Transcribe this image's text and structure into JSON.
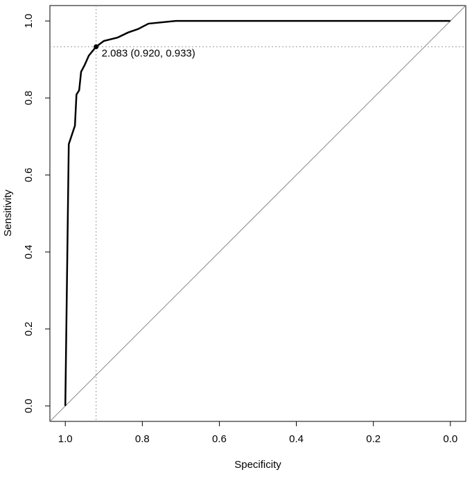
{
  "chart_data": {
    "type": "line",
    "xlabel": "Specificity",
    "ylabel": "Sensitivity",
    "xlim": [
      1.04,
      -0.04
    ],
    "ylim": [
      -0.04,
      1.04
    ],
    "xticks": [
      {
        "value": 1,
        "label": "1.0"
      },
      0.8,
      0.6,
      0.4,
      0.2,
      {
        "value": 0,
        "label": "0.0"
      }
    ],
    "yticks": [
      {
        "value": 0,
        "label": "0.0"
      },
      0.2,
      0.4,
      0.6,
      0.8,
      {
        "value": 1,
        "label": "1.0"
      }
    ],
    "series": [
      {
        "color": "#000000",
        "x": [
          1.0,
          0.996,
          0.991,
          0.975,
          0.971,
          0.964,
          0.959,
          0.95,
          0.939,
          0.92,
          0.9,
          0.864,
          0.837,
          0.811,
          0.784,
          0.713,
          0.0
        ],
        "y": [
          0.0,
          0.3,
          0.68,
          0.728,
          0.809,
          0.82,
          0.868,
          0.885,
          0.91,
          0.933,
          0.948,
          0.957,
          0.97,
          0.979,
          0.993,
          1.0,
          1.0
        ]
      }
    ],
    "threshold": {
      "x": 0.92,
      "y": 0.933,
      "label": "2.083 (0.920, 0.933)"
    }
  }
}
